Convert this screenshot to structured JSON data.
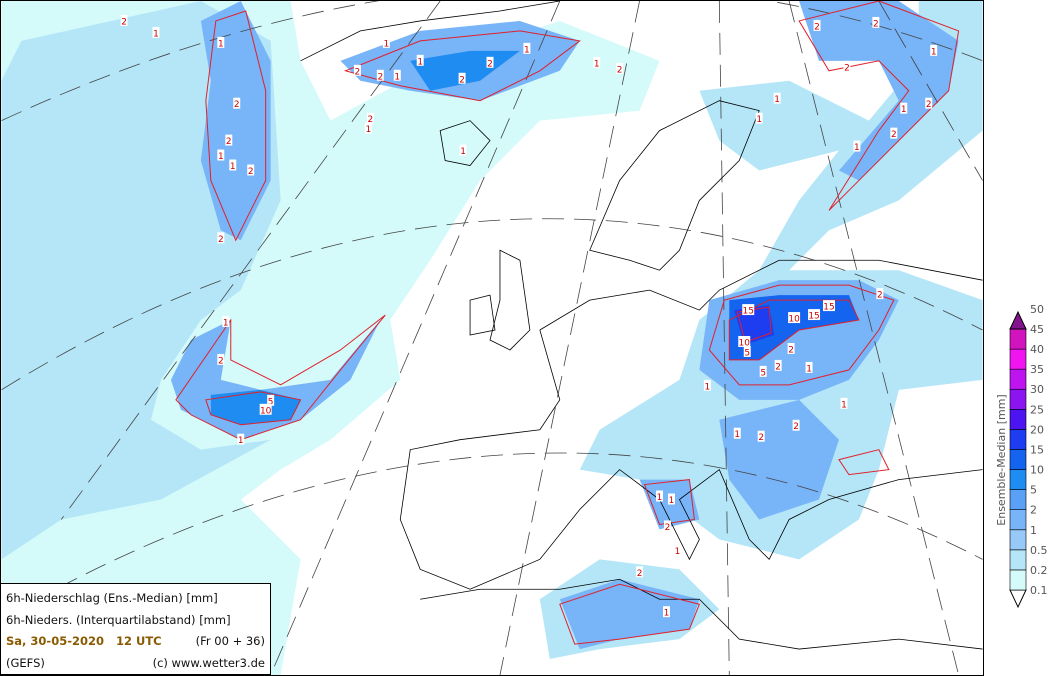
{
  "info": {
    "line1": "6h-Niederschlag (Ens.-Median) [mm]",
    "line2": "6h-Nieders. (Interquartilabstand) [mm]",
    "date": "Sa, 30-05-2020   12 UTC",
    "run": "(Fr 00 + 36)",
    "model": "(GEFS)",
    "copyright": "(c) www.wetter3.de"
  },
  "colorbar": {
    "title": "Ensemble-Median [mm]",
    "levels": [
      "0.1",
      "0.2",
      "0.5",
      "1",
      "2",
      "5",
      "10",
      "15",
      "20",
      "25",
      "30",
      "35",
      "40",
      "45",
      "50"
    ],
    "colors": [
      "#d4fafa",
      "#b4e6f8",
      "#96c8f8",
      "#78b4f8",
      "#5aa0f5",
      "#1e8cf0",
      "#1464f0",
      "#1e3cf0",
      "#4b14f0",
      "#8c14f0",
      "#be14f0",
      "#f014f0",
      "#d214be",
      "#a01496",
      "#82148c"
    ]
  },
  "contour_color": "#e0202a",
  "contour_labels": [
    "2",
    "1",
    "1",
    "2",
    "2",
    "1",
    "1",
    "2",
    "2",
    "1",
    "2",
    "2",
    "1",
    "1",
    "2",
    "2",
    "1",
    "1",
    "2",
    "2",
    "1",
    "1",
    "2",
    "5",
    "10",
    "1",
    "1",
    "15",
    "15",
    "10",
    "15",
    "10",
    "5",
    "5",
    "2",
    "2",
    "1",
    "1",
    "1",
    "2",
    "2",
    "2",
    "1",
    "1",
    "2",
    "1",
    "2",
    "2",
    "1",
    "1",
    "2",
    "1",
    "2",
    "1",
    "1",
    "2",
    "1",
    "2",
    "1"
  ]
}
